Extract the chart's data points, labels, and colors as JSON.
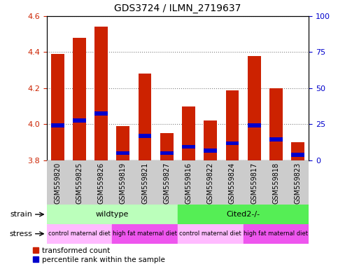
{
  "title": "GDS3724 / ILMN_2719637",
  "samples": [
    "GSM559820",
    "GSM559825",
    "GSM559826",
    "GSM559819",
    "GSM559821",
    "GSM559827",
    "GSM559816",
    "GSM559822",
    "GSM559824",
    "GSM559817",
    "GSM559818",
    "GSM559823"
  ],
  "bar_values": [
    4.39,
    4.48,
    4.54,
    3.99,
    4.28,
    3.95,
    4.1,
    4.02,
    4.19,
    4.38,
    4.2,
    3.9
  ],
  "percentile_values": [
    3.995,
    4.02,
    4.06,
    3.84,
    3.935,
    3.84,
    3.875,
    3.855,
    3.895,
    3.995,
    3.915,
    3.83
  ],
  "bar_bottom": 3.8,
  "ylim_left": [
    3.8,
    4.6
  ],
  "ylim_right": [
    0,
    100
  ],
  "yticks_left": [
    3.8,
    4.0,
    4.2,
    4.4,
    4.6
  ],
  "yticks_right": [
    0,
    25,
    50,
    75,
    100
  ],
  "bar_color": "#cc2200",
  "percentile_color": "#0000cc",
  "bar_width": 0.6,
  "strain_wildtype_range": [
    0,
    6
  ],
  "strain_cited_range": [
    6,
    12
  ],
  "strain_wildtype_label": "wildtype",
  "strain_cited_label": "Cited2-/-",
  "strain_wildtype_color": "#bbffbb",
  "strain_cited_color": "#55ee55",
  "stress_groups": [
    {
      "label": "control maternal diet",
      "range": [
        0,
        3
      ],
      "color": "#ffbbff"
    },
    {
      "label": "high fat maternal diet",
      "range": [
        3,
        6
      ],
      "color": "#ee55ee"
    },
    {
      "label": "control maternal diet",
      "range": [
        6,
        9
      ],
      "color": "#ffbbff"
    },
    {
      "label": "high fat maternal diet",
      "range": [
        9,
        12
      ],
      "color": "#ee55ee"
    }
  ],
  "legend_red_label": "transformed count",
  "legend_blue_label": "percentile rank within the sample",
  "tick_label_color_left": "#cc2200",
  "tick_label_color_right": "#0000cc",
  "xticklabel_bg": "#cccccc"
}
